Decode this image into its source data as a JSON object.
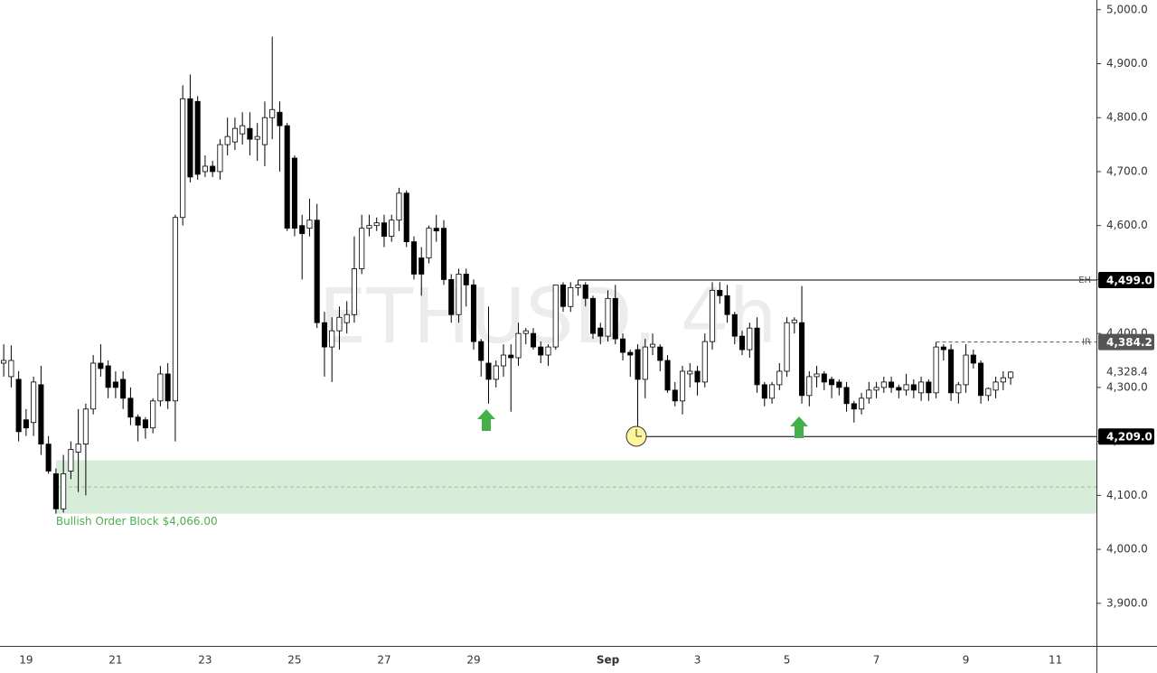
{
  "chart_data": {
    "type": "candlestick",
    "watermark": "ETHUSD, 4h",
    "categories": [
      null,
      null,
      null,
      "19",
      null,
      null,
      null,
      null,
      null,
      null,
      null,
      null,
      null,
      null,
      null,
      "21",
      null,
      null,
      null,
      null,
      null,
      null,
      null,
      null,
      null,
      null,
      null,
      "23",
      null,
      null,
      null,
      null,
      null,
      null,
      null,
      null,
      null,
      null,
      null,
      "25",
      null,
      null,
      null,
      null,
      null,
      null,
      null,
      null,
      null,
      null,
      null,
      "27",
      null,
      null,
      null,
      null,
      null,
      null,
      null,
      null,
      null,
      null,
      null,
      "29",
      null,
      null,
      null,
      null,
      null,
      null,
      null,
      null,
      null,
      null,
      null,
      null,
      null,
      null,
      null,
      null,
      null,
      "Sep",
      null,
      null,
      null,
      null,
      null,
      null,
      null,
      null,
      null,
      null,
      null,
      "3",
      null,
      null,
      null,
      null,
      null,
      null,
      null,
      null,
      null,
      null,
      null,
      "5",
      null,
      null,
      null,
      null,
      null,
      null,
      null,
      null,
      null,
      null,
      null,
      "7",
      null,
      null,
      null,
      null,
      null,
      null,
      null,
      null,
      null,
      null,
      null,
      "9",
      null,
      null,
      null,
      null,
      null,
      null,
      null,
      null,
      null,
      null,
      null,
      "11",
      null,
      null,
      null,
      null,
      null
    ],
    "open": [
      4345,
      4320,
      4315,
      4240,
      4235,
      4305,
      4195,
      4140,
      4075,
      4145,
      4180,
      4195,
      4260,
      4345,
      4340,
      4310,
      4315,
      4280,
      4245,
      4240,
      4225,
      4275,
      4325,
      4275,
      4615,
      4835,
      4830,
      4700,
      4710,
      4700,
      4750,
      4755,
      4770,
      4780,
      4760,
      4750,
      4800,
      4810,
      4785,
      4725,
      4600,
      4595,
      4610,
      4420,
      4375,
      4405,
      4420,
      4435,
      4520,
      4595,
      4600,
      4605,
      4580,
      4610,
      4660,
      4570,
      4540,
      4540,
      4595,
      4595,
      4500,
      4435,
      4510,
      4490,
      4385,
      4345,
      4315,
      4340,
      4360,
      4355,
      4400,
      4400,
      4375,
      4360,
      4375,
      4490,
      4450,
      4485,
      4490,
      4465,
      4410,
      4395,
      4465,
      4390,
      4365,
      4370,
      4315,
      4375,
      4375,
      4350,
      4295,
      4275,
      4325,
      4330,
      4310,
      4385,
      4480,
      4470,
      4435,
      4395,
      4370,
      4410,
      4305,
      4280,
      4305,
      4330,
      4420,
      4420,
      4285,
      4320,
      4325,
      4315,
      4310,
      4300,
      4270,
      4260,
      4280,
      4295,
      4300,
      4310,
      4300,
      4295,
      4305,
      4290,
      4310,
      4290,
      4375,
      4370,
      4290,
      4305,
      4360,
      4345,
      4285,
      4295,
      4310,
      4318,
      null,
      null,
      null,
      null,
      null,
      null,
      null,
      null,
      null,
      null,
      null
    ],
    "high": [
      4380,
      4378,
      4330,
      4260,
      4320,
      4340,
      4210,
      4150,
      4175,
      4200,
      4260,
      4270,
      4360,
      4380,
      4350,
      4330,
      4330,
      4300,
      4250,
      4245,
      4280,
      4340,
      4345,
      4620,
      4860,
      4880,
      4840,
      4730,
      4720,
      4760,
      4800,
      4800,
      4810,
      4810,
      4790,
      4830,
      4950,
      4830,
      4790,
      4730,
      4620,
      4650,
      4640,
      4440,
      4430,
      4450,
      4460,
      4580,
      4620,
      4620,
      4615,
      4620,
      4620,
      4670,
      4665,
      4580,
      4560,
      4600,
      4620,
      4610,
      4510,
      4520,
      4520,
      4500,
      4390,
      4450,
      4350,
      4380,
      4380,
      4420,
      4410,
      4410,
      4385,
      4380,
      4490,
      4495,
      4495,
      4499,
      4495,
      4470,
      4420,
      4480,
      4490,
      4400,
      4370,
      4380,
      4390,
      4400,
      4380,
      4360,
      4310,
      4340,
      4345,
      4340,
      4400,
      4495,
      4495,
      4490,
      4440,
      4405,
      4420,
      4430,
      4310,
      4310,
      4345,
      4430,
      4430,
      4488,
      4330,
      4340,
      4330,
      4320,
      4315,
      4310,
      4275,
      4290,
      4310,
      4310,
      4320,
      4320,
      4305,
      4325,
      4315,
      4320,
      4315,
      4384.2,
      4380,
      4380,
      4310,
      4380,
      4370,
      4350,
      4300,
      4320,
      4330,
      4330,
      null,
      null,
      null,
      null,
      null,
      null,
      null,
      null,
      null,
      null,
      null
    ],
    "low": [
      4320,
      4300,
      4200,
      4210,
      4210,
      4175,
      4140,
      4066,
      4068,
      4130,
      4106,
      4100,
      4250,
      4320,
      4280,
      4280,
      4260,
      4230,
      4200,
      4205,
      4215,
      4265,
      4260,
      4200,
      4600,
      4680,
      4685,
      4690,
      4690,
      4685,
      4730,
      4740,
      4750,
      4730,
      4720,
      4710,
      4760,
      4700,
      4590,
      4580,
      4500,
      4580,
      4410,
      4320,
      4310,
      4370,
      4400,
      4420,
      4510,
      4580,
      4590,
      4560,
      4570,
      4590,
      4560,
      4500,
      4470,
      4530,
      4570,
      4490,
      4420,
      4420,
      4450,
      4370,
      4320,
      4270,
      4300,
      4320,
      4255,
      4340,
      4380,
      4370,
      4345,
      4340,
      4370,
      4440,
      4440,
      4470,
      4450,
      4390,
      4380,
      4385,
      4380,
      4350,
      4320,
      4209,
      4280,
      4360,
      4330,
      4290,
      4265,
      4250,
      4300,
      4285,
      4300,
      4370,
      4455,
      4420,
      4380,
      4360,
      4355,
      4290,
      4265,
      4270,
      4295,
      4320,
      4400,
      4270,
      4265,
      4300,
      4295,
      4280,
      4285,
      4255,
      4235,
      4250,
      4270,
      4280,
      4290,
      4290,
      4280,
      4285,
      4280,
      4275,
      4275,
      4280,
      4350,
      4275,
      4270,
      4290,
      4335,
      4270,
      4275,
      4280,
      4295,
      4305,
      null,
      null,
      null,
      null,
      null,
      null,
      null,
      null,
      null,
      null,
      null
    ],
    "close": [
      4350,
      4350,
      4218,
      4225,
      4310,
      4195,
      4145,
      4075,
      4140,
      4185,
      4195,
      4260,
      4345,
      4335,
      4300,
      4300,
      4280,
      4245,
      4230,
      4225,
      4275,
      4325,
      4275,
      4615,
      4835,
      4690,
      4695,
      4710,
      4700,
      4750,
      4765,
      4780,
      4785,
      4760,
      4765,
      4800,
      4815,
      4785,
      4595,
      4595,
      4585,
      4610,
      4420,
      4375,
      4405,
      4430,
      4435,
      4520,
      4595,
      4600,
      4605,
      4580,
      4610,
      4660,
      4570,
      4510,
      4510,
      4595,
      4590,
      4500,
      4435,
      4510,
      4490,
      4385,
      4350,
      4315,
      4340,
      4360,
      4355,
      4400,
      4405,
      4375,
      4360,
      4375,
      4490,
      4450,
      4485,
      4490,
      4465,
      4400,
      4395,
      4465,
      4390,
      4365,
      4360,
      4315,
      4375,
      4380,
      4350,
      4295,
      4275,
      4330,
      4330,
      4310,
      4385,
      4480,
      4470,
      4435,
      4395,
      4370,
      4410,
      4305,
      4280,
      4305,
      4330,
      4420,
      4425,
      4285,
      4320,
      4325,
      4310,
      4305,
      4300,
      4270,
      4260,
      4280,
      4295,
      4300,
      4310,
      4300,
      4295,
      4305,
      4295,
      4310,
      4290,
      4375,
      4370,
      4290,
      4305,
      4360,
      4345,
      4285,
      4298,
      4310,
      4318,
      4328.4,
      null,
      null,
      null,
      null,
      null,
      null,
      null,
      null,
      null,
      null,
      null
    ],
    "up_color": "#ffffff",
    "down_color": "#000000",
    "wick_color": "#000000",
    "ylim": [
      3821,
      5018
    ],
    "yticks": [
      {
        "value": 3900,
        "label": "3,900.0"
      },
      {
        "value": 4000,
        "label": "4,000.0"
      },
      {
        "value": 4100,
        "label": "4,100.0"
      },
      {
        "value": 4200,
        "label": "4,200.0"
      },
      {
        "value": 4300,
        "label": "4,300.0"
      },
      {
        "value": 4400,
        "label": "4,400.0"
      },
      {
        "value": 4500,
        "label": "4,500.0"
      },
      {
        "value": 4600,
        "label": "4,600.0"
      },
      {
        "value": 4700,
        "label": "4,700.0"
      },
      {
        "value": 4800,
        "label": "4,800.0"
      },
      {
        "value": 4900,
        "label": "4,900.0"
      },
      {
        "value": 5000,
        "label": "5,000.0"
      }
    ],
    "grid": false,
    "last_price": {
      "value": 4328.4,
      "label": "4,328.4"
    },
    "levels": [
      {
        "name": "EH",
        "value": 4499,
        "label": "4,499.0",
        "anchor": "high",
        "color": "#000000",
        "style": "solid"
      },
      {
        "name": "IR",
        "value": 4384.2,
        "label": "4,384.2",
        "anchor": "high",
        "color": "#555555",
        "style": "dashed"
      },
      {
        "value": 4209,
        "label": "4,209.0",
        "anchor": "low",
        "color": "#000000",
        "style": "solid"
      }
    ],
    "order_block": {
      "label": "Bullish Order Block $4,066.00",
      "low": 4066,
      "high": 4165,
      "color": "#4caf50"
    }
  }
}
